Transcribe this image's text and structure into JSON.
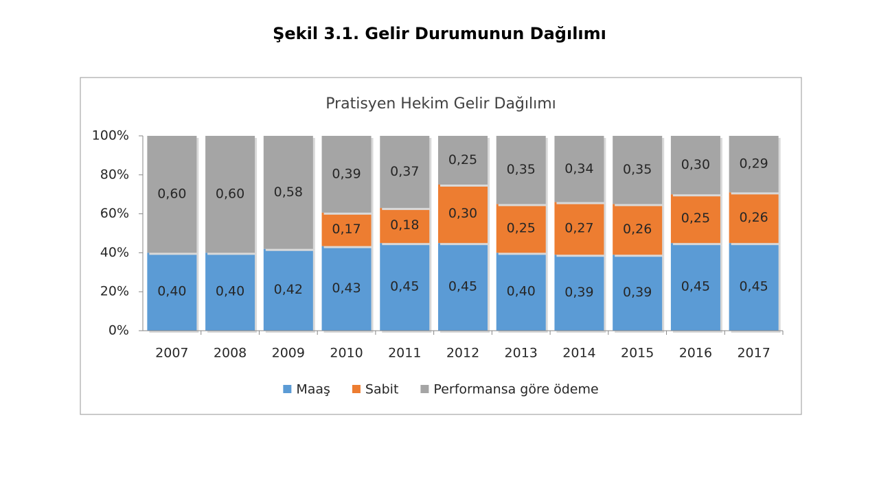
{
  "heading": "Şekil 3.1. Gelir Durumunun Dağılımı",
  "chart_data": {
    "type": "bar",
    "stacking": "percent",
    "title": "Pratisyen Hekim Gelir Dağılımı",
    "categories": [
      "2007",
      "2008",
      "2009",
      "2010",
      "2011",
      "2012",
      "2013",
      "2014",
      "2015",
      "2016",
      "2017"
    ],
    "series": [
      {
        "name": "Maaş",
        "color": "#5b9bd5",
        "values": [
          40,
          40,
          42,
          43,
          45,
          45,
          40,
          39,
          39,
          45,
          45
        ],
        "value_labels": [
          "0,40",
          "0,40",
          "0,42",
          "0,43",
          "0,45",
          "0,45",
          "0,40",
          "0,39",
          "0,39",
          "0,45",
          "0,45"
        ]
      },
      {
        "name": "Sabit",
        "color": "#ed7d31",
        "values": [
          null,
          null,
          null,
          17,
          18,
          30,
          25,
          27,
          26,
          25,
          26
        ],
        "value_labels": [
          null,
          null,
          null,
          "0,17",
          "0,18",
          "0,30",
          "0,25",
          "0,27",
          "0,26",
          "0,25",
          "0,26"
        ]
      },
      {
        "name": "Performansa göre ödeme",
        "color": "#a5a5a5",
        "values": [
          60,
          60,
          58,
          39,
          37,
          25,
          35,
          34,
          35,
          30,
          29
        ],
        "value_labels": [
          "0,60",
          "0,60",
          "0,58",
          "0,39",
          "0,37",
          "0,25",
          "0,35",
          "0,34",
          "0,35",
          "0,30",
          "0,29"
        ]
      }
    ],
    "ylim": [
      0,
      100
    ],
    "yticks": [
      {
        "value": 0,
        "label": "0%"
      },
      {
        "value": 20,
        "label": "20%"
      },
      {
        "value": 40,
        "label": "40%"
      },
      {
        "value": 60,
        "label": "60%"
      },
      {
        "value": 80,
        "label": "80%"
      },
      {
        "value": 100,
        "label": "100%"
      }
    ],
    "legend": "bottom"
  }
}
